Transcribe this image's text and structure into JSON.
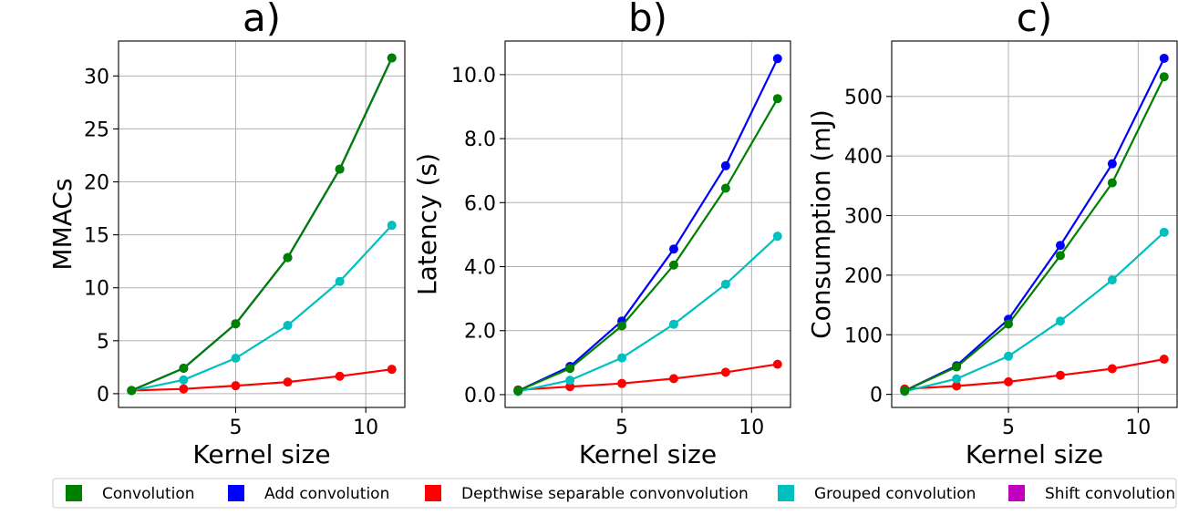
{
  "colors": {
    "Convolution": "#008000",
    "Add convolution": "#0000ff",
    "Depthwise separable convonvolution": "#ff0000",
    "Grouped convolution": "#00bfbf",
    "Shift convolution": "#bf00bf"
  },
  "legend": {
    "placement": "bottom",
    "entries": [
      "Convolution",
      "Add convolution",
      "Depthwise separable convonvolution",
      "Grouped convolution",
      "Shift convolution"
    ]
  },
  "chart_data": [
    {
      "type": "line",
      "title": "a)",
      "xlabel": "Kernel size",
      "ylabel": "MMACs",
      "xlim": [
        0.5,
        11.5
      ],
      "ylim": [
        -1.3,
        33.3
      ],
      "grid": true,
      "xticks": [
        5,
        10
      ],
      "yticks": [
        0,
        5,
        10,
        15,
        20,
        25,
        30
      ],
      "ytick_labels": [
        "0",
        "5",
        "10",
        "15",
        "20",
        "25",
        "30"
      ],
      "x": [
        1,
        3,
        5,
        7,
        9,
        11
      ],
      "series": [
        {
          "name": "Depthwise separable convonvolution",
          "values": [
            0.3,
            0.45,
            0.75,
            1.1,
            1.65,
            2.3
          ]
        },
        {
          "name": "Grouped convolution",
          "values": [
            0.28,
            1.3,
            3.35,
            6.45,
            10.6,
            15.9
          ]
        },
        {
          "name": "Add convolution",
          "values": [
            0.3,
            2.4,
            6.6,
            12.85,
            21.2,
            31.7
          ]
        },
        {
          "name": "Convolution",
          "values": [
            0.3,
            2.4,
            6.6,
            12.85,
            21.2,
            31.7
          ]
        }
      ]
    },
    {
      "type": "line",
      "title": "b)",
      "xlabel": "Kernel size",
      "ylabel": "Latency (s)",
      "xlim": [
        0.5,
        11.5
      ],
      "ylim": [
        -0.4,
        11.05
      ],
      "grid": true,
      "xticks": [
        5,
        10
      ],
      "yticks": [
        0,
        2,
        4,
        6,
        8,
        10
      ],
      "ytick_labels": [
        "0.0",
        "2.0",
        "4.0",
        "6.0",
        "8.0",
        "10.0"
      ],
      "x": [
        1,
        3,
        5,
        7,
        9,
        11
      ],
      "series": [
        {
          "name": "Depthwise separable convonvolution",
          "values": [
            0.15,
            0.25,
            0.35,
            0.5,
            0.7,
            0.95
          ]
        },
        {
          "name": "Grouped convolution",
          "values": [
            0.1,
            0.45,
            1.15,
            2.2,
            3.45,
            4.95
          ]
        },
        {
          "name": "Add convolution",
          "values": [
            0.12,
            0.88,
            2.3,
            4.55,
            7.15,
            10.5
          ]
        },
        {
          "name": "Convolution",
          "values": [
            0.12,
            0.82,
            2.15,
            4.05,
            6.45,
            9.25
          ]
        }
      ]
    },
    {
      "type": "line",
      "title": "c)",
      "xlabel": "Kernel size",
      "ylabel": "Consumption (mJ)",
      "xlim": [
        0.5,
        11.5
      ],
      "ylim": [
        -22,
        593
      ],
      "grid": true,
      "xticks": [
        5,
        10
      ],
      "yticks": [
        0,
        100,
        200,
        300,
        400,
        500
      ],
      "ytick_labels": [
        "0",
        "100",
        "200",
        "300",
        "400",
        "500"
      ],
      "x": [
        1,
        3,
        5,
        7,
        9,
        11
      ],
      "series": [
        {
          "name": "Depthwise separable convonvolution",
          "values": [
            9,
            14,
            21,
            32,
            43,
            59
          ]
        },
        {
          "name": "Grouped convolution",
          "values": [
            5,
            26,
            64,
            123,
            192,
            272
          ]
        },
        {
          "name": "Add convolution",
          "values": [
            6,
            48,
            126,
            250,
            387,
            564
          ]
        },
        {
          "name": "Convolution",
          "values": [
            6,
            46,
            118,
            233,
            355,
            533
          ]
        }
      ]
    }
  ]
}
